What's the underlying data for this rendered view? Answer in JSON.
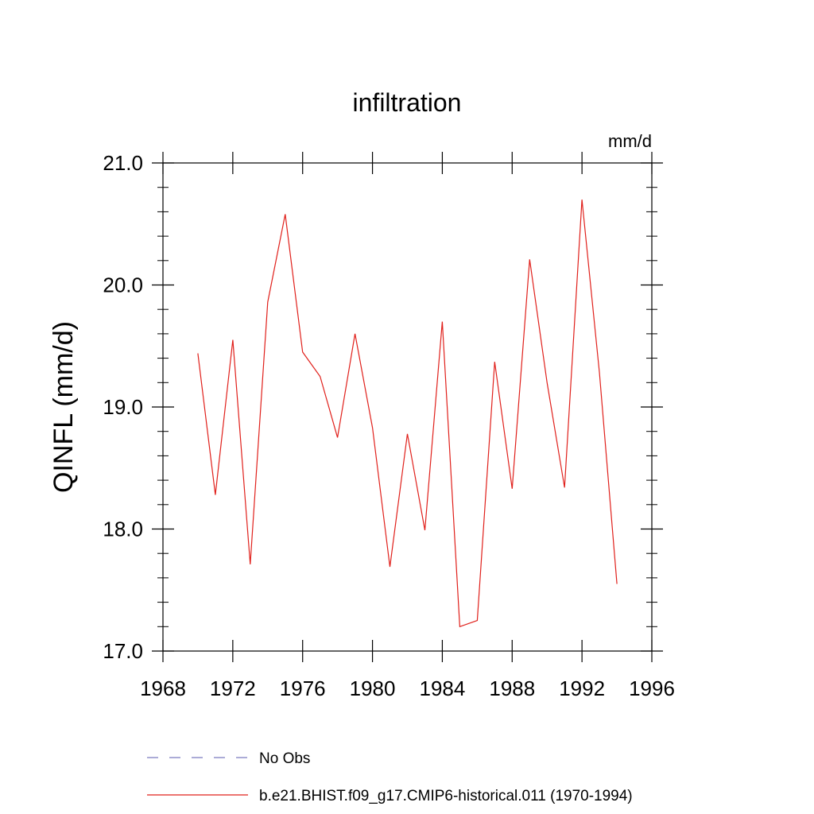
{
  "chart_data": {
    "type": "line",
    "title": "infiltration",
    "units_label": "mm/d",
    "ylabel": "QINFL  (mm/d)",
    "xlabel": "",
    "xlim": [
      1968,
      1996
    ],
    "ylim": [
      17.0,
      21.0
    ],
    "x_ticks": [
      1968,
      1972,
      1976,
      1980,
      1984,
      1988,
      1992,
      1996
    ],
    "y_ticks": [
      "17.0",
      "18.0",
      "19.0",
      "20.0",
      "21.0"
    ],
    "grid": false,
    "legend_position": "bottom",
    "series": [
      {
        "name": "No Obs",
        "color": "#7b7bbf",
        "style": "dashed",
        "x": [],
        "values": []
      },
      {
        "name": "b.e21.BHIST.f09_g17.CMIP6-historical.011 (1970-1994)",
        "color": "#e0201b",
        "style": "solid",
        "x": [
          1970,
          1971,
          1972,
          1973,
          1974,
          1975,
          1976,
          1977,
          1978,
          1979,
          1980,
          1981,
          1982,
          1983,
          1984,
          1985,
          1986,
          1987,
          1988,
          1989,
          1990,
          1991,
          1992,
          1993,
          1994
        ],
        "values": [
          19.44,
          18.28,
          19.55,
          17.71,
          19.86,
          20.58,
          19.45,
          19.25,
          18.75,
          19.6,
          18.83,
          17.69,
          18.78,
          17.99,
          19.7,
          17.2,
          17.25,
          19.37,
          18.33,
          20.21,
          19.2,
          18.34,
          20.7,
          19.28,
          17.55
        ]
      }
    ]
  }
}
